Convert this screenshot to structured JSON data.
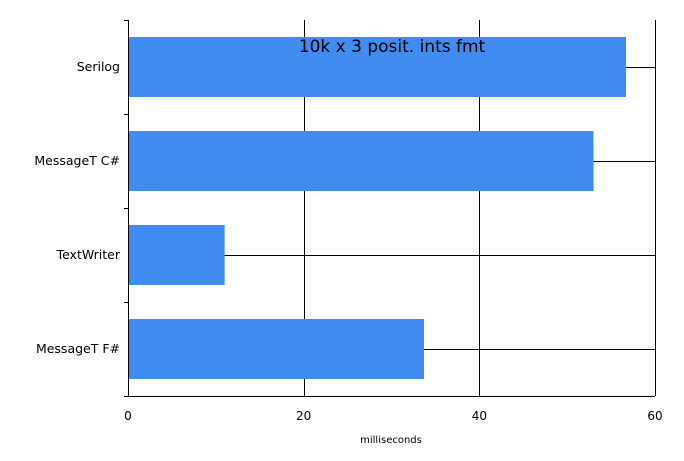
{
  "chart_data": {
    "type": "bar",
    "orientation": "horizontal",
    "title": "10k x 3 posit. ints fmt",
    "xlabel": "milliseconds",
    "ylabel": "",
    "categories": [
      "Serilog",
      "MessageT C#",
      "TextWriter",
      "MessageT F#"
    ],
    "values": [
      56.7,
      53.0,
      11.0,
      33.7
    ],
    "xlim": [
      0,
      60
    ],
    "xticks": [
      0,
      20,
      40,
      60
    ],
    "grid": true,
    "legend": "none",
    "bar_color": "#418cf0"
  }
}
